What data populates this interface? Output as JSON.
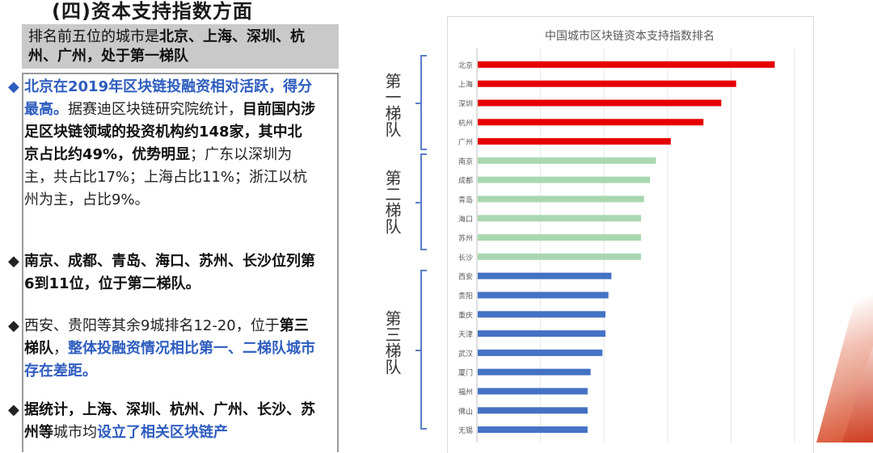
{
  "slide": {
    "title": "(四)资本支持指数方面",
    "summary_prefix": "排名前五位的城市是",
    "summary_bold": "北京、上海、深圳、杭州、广州，处于第一梯队"
  },
  "bullets": [
    {
      "diamond": "◆",
      "blue": "北京在2019年区块链投融资相对活跃，得分最高。",
      "normal1": "据赛迪区块链研究院统计，",
      "bold": "目前国内涉足区块链领域的投资机构约148家，其中北京占比约49%，优势明显",
      "normal2": "；广东以深圳为主，共占比17%；上海占比11%；浙江以杭州为主，占比9%。"
    },
    {
      "diamond": "◆",
      "bold": "南京、成都、青岛、海口、苏州、长沙位列第6到11位，位于第二梯队。"
    },
    {
      "diamond": "◆",
      "normal1": "西安、贵阳等其余9城排名12-20，位于",
      "bold": "第三梯队",
      "normal2": "，",
      "blue": "整体投融资情况相比第一、二梯队城市存在差距。"
    },
    {
      "diamond": "◆",
      "bold1": "据统计，上海、深圳、杭州、广州、长沙、苏州等",
      "normal1": "城市均",
      "blue": "设立了相关区块链产"
    }
  ],
  "tiers": [
    {
      "label": "第一梯队"
    },
    {
      "label": "第二梯队"
    },
    {
      "label": "第三梯队"
    }
  ],
  "chart_data": {
    "type": "bar",
    "orientation": "horizontal",
    "title": "中国城市区块链资本支持指数排名",
    "categories": [
      "北京",
      "上海",
      "深圳",
      "杭州",
      "广州",
      "南京",
      "成都",
      "青岛",
      "海口",
      "苏州",
      "长沙",
      "西安",
      "贵阳",
      "重庆",
      "天津",
      "武汉",
      "厦门",
      "福州",
      "佛山",
      "无锡"
    ],
    "values": [
      100,
      87,
      82,
      76,
      65,
      60,
      58,
      56,
      55,
      55,
      55,
      45,
      44,
      43,
      43,
      42,
      38,
      37,
      37,
      37
    ],
    "colors": [
      "#e60000",
      "#e60000",
      "#e60000",
      "#e60000",
      "#e60000",
      "#a9d8b0",
      "#a9d8b0",
      "#a9d8b0",
      "#a9d8b0",
      "#a9d8b0",
      "#a9d8b0",
      "#4472c4",
      "#4472c4",
      "#4472c4",
      "#4472c4",
      "#4472c4",
      "#4472c4",
      "#4472c4",
      "#4472c4",
      "#4472c4"
    ],
    "xlim": [
      0,
      100
    ],
    "grid": true,
    "legend": "none"
  }
}
